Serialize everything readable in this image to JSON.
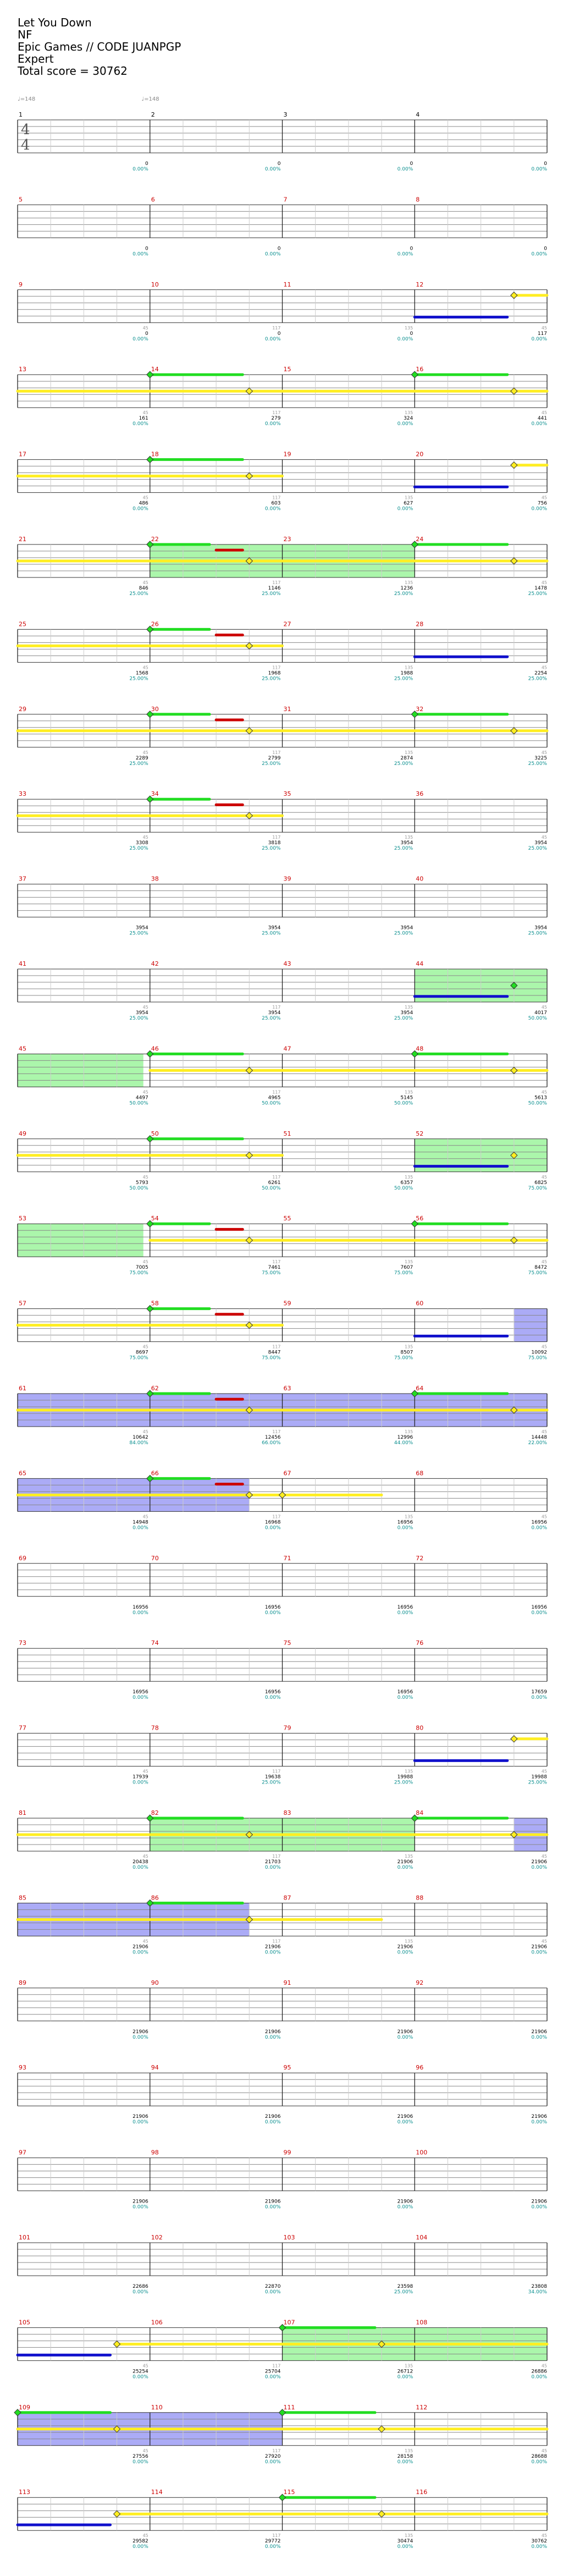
{
  "header": {
    "title": "Let You Down",
    "artist": "NF",
    "charter": "Epic Games // CODE JUANPGP",
    "difficulty": "Expert",
    "total_score_text": "Total score = 30762"
  },
  "tempo_markers": [
    "♩=148",
    "♩=148"
  ],
  "time_signature": [
    "4",
    "4"
  ],
  "measures": [
    {
      "n": 1,
      "score": "0",
      "pct": "0.00%"
    },
    {
      "n": 2,
      "score": "0",
      "pct": "0.00%"
    },
    {
      "n": 3,
      "score": "0",
      "pct": "0.00%"
    },
    {
      "n": 4,
      "score": "0",
      "pct": "0.00%"
    },
    {
      "n": 5,
      "score": "0",
      "pct": "0.00%"
    },
    {
      "n": 6,
      "score": "0",
      "pct": "0.00%"
    },
    {
      "n": 7,
      "score": "0",
      "pct": "0.00%"
    },
    {
      "n": 8,
      "score": "0",
      "pct": "0.00%"
    },
    {
      "n": 9,
      "score": "0",
      "pct": "0.00%"
    },
    {
      "n": 10,
      "score": "0",
      "pct": "0.00%"
    },
    {
      "n": 11,
      "score": "0",
      "pct": "0.00%"
    },
    {
      "n": 12,
      "score": "117",
      "pct": "0.00%"
    },
    {
      "n": 13,
      "score": "161",
      "pct": "0.00%"
    },
    {
      "n": 14,
      "score": "279",
      "pct": "0.00%"
    },
    {
      "n": 15,
      "score": "324",
      "pct": "0.00%"
    },
    {
      "n": 16,
      "score": "441",
      "pct": "0.00%"
    },
    {
      "n": 17,
      "score": "486",
      "pct": "0.00%"
    },
    {
      "n": 18,
      "score": "603",
      "pct": "0.00%"
    },
    {
      "n": 19,
      "score": "627",
      "pct": "0.00%"
    },
    {
      "n": 20,
      "score": "756",
      "pct": "0.00%"
    },
    {
      "n": 21,
      "score": "846",
      "pct": "25.00%"
    },
    {
      "n": 22,
      "score": "1146",
      "pct": "25.00%"
    },
    {
      "n": 23,
      "score": "1236",
      "pct": "25.00%"
    },
    {
      "n": 24,
      "score": "1478",
      "pct": "25.00%"
    },
    {
      "n": 25,
      "score": "1568",
      "pct": "25.00%"
    },
    {
      "n": 26,
      "score": "1968",
      "pct": "25.00%"
    },
    {
      "n": 27,
      "score": "1988",
      "pct": "25.00%"
    },
    {
      "n": 28,
      "score": "2254",
      "pct": "25.00%"
    },
    {
      "n": 29,
      "score": "2289",
      "pct": "25.00%"
    },
    {
      "n": 30,
      "score": "2799",
      "pct": "25.00%"
    },
    {
      "n": 31,
      "score": "2874",
      "pct": "25.00%"
    },
    {
      "n": 32,
      "score": "3225",
      "pct": "25.00%"
    },
    {
      "n": 33,
      "score": "3308",
      "pct": "25.00%"
    },
    {
      "n": 34,
      "score": "3818",
      "pct": "25.00%"
    },
    {
      "n": 35,
      "score": "3954",
      "pct": "25.00%"
    },
    {
      "n": 36,
      "score": "3954",
      "pct": "25.00%"
    },
    {
      "n": 37,
      "score": "3954",
      "pct": "25.00%"
    },
    {
      "n": 38,
      "score": "3954",
      "pct": "25.00%"
    },
    {
      "n": 39,
      "score": "3954",
      "pct": "25.00%"
    },
    {
      "n": 40,
      "score": "3954",
      "pct": "25.00%"
    },
    {
      "n": 41,
      "score": "3954",
      "pct": "25.00%"
    },
    {
      "n": 42,
      "score": "3954",
      "pct": "25.00%"
    },
    {
      "n": 43,
      "score": "3954",
      "pct": "25.00%"
    },
    {
      "n": 44,
      "score": "4017",
      "pct": "50.00%"
    },
    {
      "n": 45,
      "score": "4497",
      "pct": "50.00%"
    },
    {
      "n": 46,
      "score": "4965",
      "pct": "50.00%"
    },
    {
      "n": 47,
      "score": "5145",
      "pct": "50.00%"
    },
    {
      "n": 48,
      "score": "5613",
      "pct": "50.00%"
    },
    {
      "n": 49,
      "score": "5793",
      "pct": "50.00%"
    },
    {
      "n": 50,
      "score": "6261",
      "pct": "50.00%"
    },
    {
      "n": 51,
      "score": "6357",
      "pct": "50.00%"
    },
    {
      "n": 52,
      "score": "6825",
      "pct": "75.00%"
    },
    {
      "n": 53,
      "score": "7005",
      "pct": "75.00%"
    },
    {
      "n": 54,
      "score": "7461",
      "pct": "75.00%"
    },
    {
      "n": 55,
      "score": "7607",
      "pct": "75.00%"
    },
    {
      "n": 56,
      "score": "8472",
      "pct": "75.00%"
    },
    {
      "n": 57,
      "score": "8697",
      "pct": "75.00%"
    },
    {
      "n": 58,
      "score": "8447",
      "pct": "75.00%"
    },
    {
      "n": 59,
      "score": "8507",
      "pct": "75.00%"
    },
    {
      "n": 60,
      "score": "10092",
      "pct": "75.00%"
    },
    {
      "n": 61,
      "score": "10642",
      "pct": "84.00%"
    },
    {
      "n": 62,
      "score": "12456",
      "pct": "66.00%"
    },
    {
      "n": 63,
      "score": "12996",
      "pct": "44.00%"
    },
    {
      "n": 64,
      "score": "14448",
      "pct": "22.00%"
    },
    {
      "n": 65,
      "score": "14948",
      "pct": "0.00%"
    },
    {
      "n": 66,
      "score": "16968",
      "pct": "0.00%"
    },
    {
      "n": 67,
      "score": "16956",
      "pct": "0.00%"
    },
    {
      "n": 68,
      "score": "16956",
      "pct": "0.00%"
    },
    {
      "n": 69,
      "score": "16956",
      "pct": "0.00%"
    },
    {
      "n": 70,
      "score": "16956",
      "pct": "0.00%"
    },
    {
      "n": 71,
      "score": "16956",
      "pct": "0.00%"
    },
    {
      "n": 72,
      "score": "16956",
      "pct": "0.00%"
    },
    {
      "n": 73,
      "score": "16956",
      "pct": "0.00%"
    },
    {
      "n": 74,
      "score": "16956",
      "pct": "0.00%"
    },
    {
      "n": 75,
      "score": "16956",
      "pct": "0.00%"
    },
    {
      "n": 76,
      "score": "17659",
      "pct": "0.00%"
    },
    {
      "n": 77,
      "score": "17939",
      "pct": "0.00%"
    },
    {
      "n": 78,
      "score": "19638",
      "pct": "25.00%"
    },
    {
      "n": 79,
      "score": "19988",
      "pct": "25.00%"
    },
    {
      "n": 80,
      "score": "19988",
      "pct": "25.00%"
    },
    {
      "n": 81,
      "score": "20438",
      "pct": "0.00%"
    },
    {
      "n": 82,
      "score": "21703",
      "pct": "0.00%"
    },
    {
      "n": 83,
      "score": "21906",
      "pct": "0.00%"
    },
    {
      "n": 84,
      "score": "21906",
      "pct": "0.00%"
    },
    {
      "n": 85,
      "score": "21906",
      "pct": "0.00%"
    },
    {
      "n": 86,
      "score": "21906",
      "pct": "0.00%"
    },
    {
      "n": 87,
      "score": "21906",
      "pct": "0.00%"
    },
    {
      "n": 88,
      "score": "21906",
      "pct": "0.00%"
    },
    {
      "n": 89,
      "score": "21906",
      "pct": "0.00%"
    },
    {
      "n": 90,
      "score": "21906",
      "pct": "0.00%"
    },
    {
      "n": 91,
      "score": "21906",
      "pct": "0.00%"
    },
    {
      "n": 92,
      "score": "21906",
      "pct": "0.00%"
    },
    {
      "n": 93,
      "score": "21906",
      "pct": "0.00%"
    },
    {
      "n": 94,
      "score": "21906",
      "pct": "0.00%"
    },
    {
      "n": 95,
      "score": "21906",
      "pct": "0.00%"
    },
    {
      "n": 96,
      "score": "21906",
      "pct": "0.00%"
    },
    {
      "n": 97,
      "score": "21906",
      "pct": "0.00%"
    },
    {
      "n": 98,
      "score": "21906",
      "pct": "0.00%"
    },
    {
      "n": 99,
      "score": "21906",
      "pct": "0.00%"
    },
    {
      "n": 100,
      "score": "21906",
      "pct": "0.00%"
    },
    {
      "n": 101,
      "score": "22686",
      "pct": "0.00%"
    },
    {
      "n": 102,
      "score": "22870",
      "pct": "0.00%"
    },
    {
      "n": 103,
      "score": "23598",
      "pct": "25.00%"
    },
    {
      "n": 104,
      "score": "23808",
      "pct": "34.00%"
    },
    {
      "n": 105,
      "score": "25254",
      "pct": "0.00%"
    },
    {
      "n": 106,
      "score": "25704",
      "pct": "0.00%"
    },
    {
      "n": 107,
      "score": "26712",
      "pct": "0.00%"
    },
    {
      "n": 108,
      "score": "26886",
      "pct": "0.00%"
    },
    {
      "n": 109,
      "score": "27556",
      "pct": "0.00%"
    },
    {
      "n": 110,
      "score": "27920",
      "pct": "0.00%"
    },
    {
      "n": 111,
      "score": "28158",
      "pct": "0.00%"
    },
    {
      "n": 112,
      "score": "28688",
      "pct": "0.00%"
    },
    {
      "n": 113,
      "score": "29582",
      "pct": "0.00%"
    },
    {
      "n": 114,
      "score": "29772",
      "pct": "0.00%"
    },
    {
      "n": 115,
      "score": "30474",
      "pct": "0.00%"
    },
    {
      "n": 116,
      "score": "30762",
      "pct": "0.00%"
    }
  ],
  "lane_labels": {
    "l1": "45",
    "l2": "117",
    "l3": "135"
  },
  "colors": {
    "green_note": "#22dd22",
    "yellow_note": "#ffee22",
    "blue_note": "#1010cc",
    "red_note": "#cc0000",
    "star_power": "#66ee66",
    "overdrive": "#6666ee"
  }
}
